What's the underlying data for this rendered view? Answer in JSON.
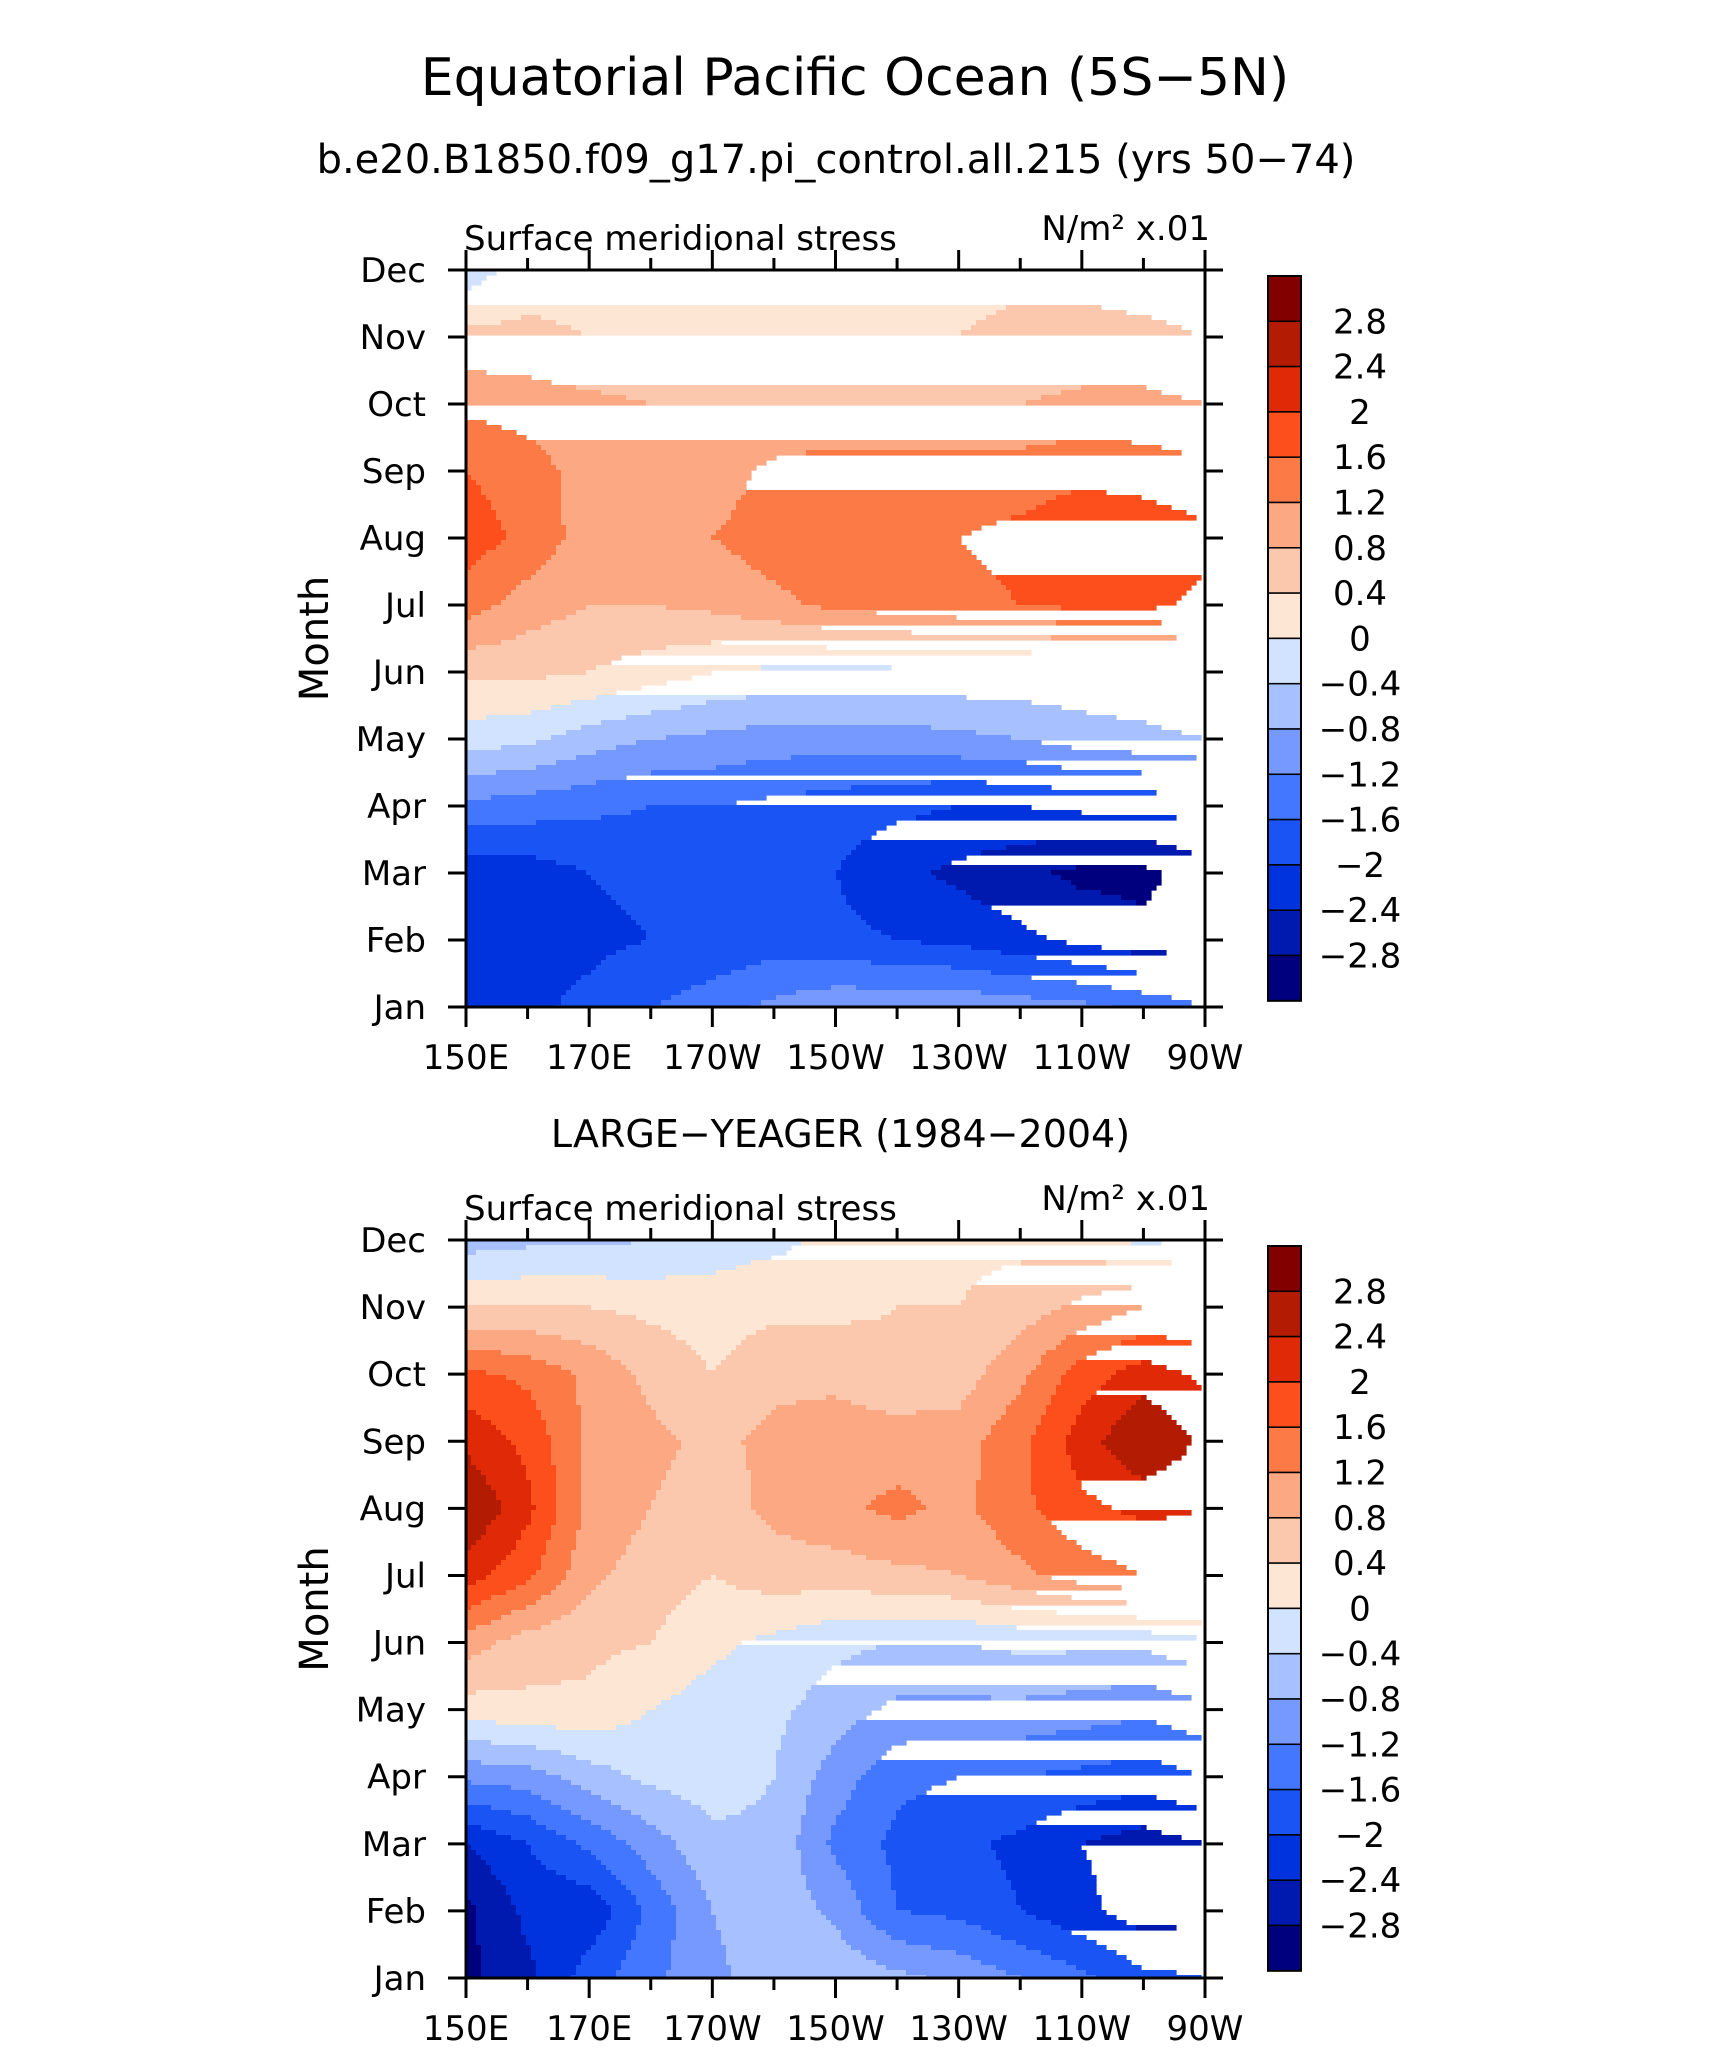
{
  "figure": {
    "title": "Equatorial Pacific Ocean (5S−5N)",
    "subtitle": "b.e20.B1850.f09_g17.pi_control.all.215 (yrs 50−74)"
  },
  "chart_data": [
    {
      "type": "heatmap",
      "title": "b.e20.B1850.f09_g17.pi_control.all.215 (yrs 50−74)",
      "left_label": "Surface meridional stress",
      "units_label": "N/m² x.01",
      "xlabel": "",
      "ylabel": "Month",
      "x_ticks": [
        "150E",
        "170E",
        "170W",
        "150W",
        "130W",
        "110W",
        "90W"
      ],
      "x_lon": [
        150,
        160,
        170,
        180,
        190,
        200,
        210,
        220,
        230,
        240,
        250,
        260,
        270
      ],
      "y_months": [
        "Jan",
        "Feb",
        "Mar",
        "Apr",
        "May",
        "Jun",
        "Jul",
        "Aug",
        "Sep",
        "Oct",
        "Nov",
        "Dec"
      ],
      "values": [
        [
          -2.1,
          -2.1,
          -1.9,
          -1.6,
          -1.4,
          -1.1,
          -0.9,
          -0.9,
          -0.9,
          -1.0,
          -1.1,
          -1.3,
          -1.6
        ],
        [
          -2.3,
          -2.1,
          -2.1,
          -2.0,
          -1.9,
          -1.8,
          -1.9,
          -2.0,
          -2.1,
          -2.3,
          -2.5,
          -2.7,
          -2.5
        ],
        [
          -2.3,
          -2.2,
          -2.0,
          -1.9,
          -1.9,
          -1.8,
          -2.0,
          -2.3,
          -2.5,
          -2.7,
          -2.9,
          -2.9,
          -2.6
        ],
        [
          -1.3,
          -1.4,
          -1.5,
          -1.6,
          -1.6,
          -1.7,
          -1.8,
          -1.9,
          -2.0,
          -2.0,
          -1.9,
          -1.9,
          -1.8
        ],
        [
          -0.2,
          -0.3,
          -0.6,
          -0.8,
          -0.9,
          -1.0,
          -1.0,
          -1.0,
          -0.9,
          -0.8,
          -0.6,
          -0.5,
          -0.4
        ],
        [
          0.5,
          0.5,
          0.4,
          0.2,
          0.0,
          -0.1,
          -0.1,
          -0.1,
          -0.1,
          -0.1,
          -0.1,
          -0.1,
          0.0
        ],
        [
          1.4,
          1.0,
          0.8,
          0.8,
          0.9,
          1.1,
          1.3,
          1.4,
          1.5,
          1.6,
          1.7,
          1.7,
          1.5
        ],
        [
          1.8,
          1.5,
          1.0,
          0.9,
          1.2,
          1.4,
          1.5,
          1.5,
          1.6,
          1.7,
          1.9,
          1.9,
          1.7
        ],
        [
          1.6,
          1.4,
          1.0,
          0.9,
          1.0,
          1.3,
          1.4,
          1.4,
          1.4,
          1.4,
          1.5,
          1.4,
          1.3
        ],
        [
          1.1,
          1.0,
          0.9,
          0.8,
          0.8,
          0.8,
          0.8,
          0.8,
          0.8,
          0.8,
          0.9,
          0.9,
          0.8
        ],
        [
          0.5,
          0.5,
          0.4,
          0.4,
          0.4,
          0.4,
          0.4,
          0.4,
          0.4,
          0.5,
          0.5,
          0.5,
          0.4
        ],
        [
          -0.2,
          0.2,
          0.2,
          0.2,
          0.3,
          0.3,
          0.3,
          0.3,
          0.3,
          0.3,
          0.3,
          0.2,
          0.1
        ]
      ],
      "levels": [
        -2.8,
        -2.4,
        -2.0,
        -1.6,
        -1.2,
        -0.8,
        -0.4,
        0,
        0.4,
        0.8,
        1.2,
        1.6,
        2.0,
        2.4,
        2.8
      ],
      "colorbar_labels": [
        "2.8",
        "2.4",
        "2",
        "1.6",
        "1.2",
        "0.8",
        "0.4",
        "0",
        "−0.4",
        "−0.8",
        "−1.2",
        "−1.6",
        "−2",
        "−2.4",
        "−2.8"
      ]
    },
    {
      "type": "heatmap",
      "title": "LARGE−YEAGER (1984−2004)",
      "left_label": "Surface meridional stress",
      "units_label": "N/m² x.01",
      "xlabel": "",
      "ylabel": "Month",
      "x_ticks": [
        "150E",
        "170E",
        "170W",
        "150W",
        "130W",
        "110W",
        "90W"
      ],
      "x_lon": [
        150,
        160,
        170,
        180,
        190,
        200,
        210,
        220,
        230,
        240,
        250,
        260,
        270
      ],
      "y_months": [
        "Jan",
        "Feb",
        "Mar",
        "Apr",
        "May",
        "Jun",
        "Jul",
        "Aug",
        "Sep",
        "Oct",
        "Nov",
        "Dec"
      ],
      "values": [
        [
          -2.9,
          -2.5,
          -1.8,
          -1.3,
          -0.9,
          -0.6,
          -0.5,
          -0.7,
          -0.9,
          -1.2,
          -1.5,
          -1.9,
          -2.0
        ],
        [
          -2.9,
          -2.3,
          -2.3,
          -1.5,
          -0.8,
          -0.5,
          -0.9,
          -1.6,
          -1.7,
          -2.0,
          -2.3,
          -2.6,
          -2.5
        ],
        [
          -2.4,
          -2.0,
          -1.5,
          -1.0,
          -0.5,
          -0.5,
          -1.3,
          -1.7,
          -1.9,
          -2.1,
          -2.4,
          -2.6,
          -2.4
        ],
        [
          -1.1,
          -1.0,
          -0.6,
          -0.3,
          -0.2,
          -0.4,
          -1.0,
          -1.5,
          -1.6,
          -1.6,
          -1.7,
          -1.8,
          -1.6
        ],
        [
          0.2,
          0.3,
          0.3,
          0.0,
          -0.2,
          -0.3,
          -0.6,
          -0.9,
          -0.9,
          -0.9,
          -1.0,
          -1.1,
          -0.9
        ],
        [
          1.0,
          0.6,
          0.5,
          0.4,
          0.1,
          -0.1,
          -0.3,
          -0.4,
          -0.4,
          -0.3,
          -0.3,
          -0.3,
          -0.1
        ],
        [
          2.2,
          1.7,
          0.9,
          0.6,
          0.4,
          0.6,
          0.6,
          0.7,
          0.8,
          1.1,
          1.4,
          1.6,
          1.6
        ],
        [
          2.8,
          2.1,
          1.1,
          0.8,
          0.6,
          0.9,
          1.1,
          1.3,
          1.1,
          1.5,
          1.9,
          2.1,
          2.0
        ],
        [
          2.3,
          1.9,
          1.1,
          0.9,
          0.7,
          0.9,
          1.0,
          1.0,
          1.0,
          1.5,
          2.2,
          2.8,
          2.3
        ],
        [
          1.7,
          1.5,
          1.1,
          0.7,
          0.4,
          0.7,
          0.7,
          0.5,
          0.6,
          1.1,
          1.8,
          2.2,
          1.9
        ],
        [
          0.4,
          0.4,
          0.4,
          0.3,
          0.2,
          0.3,
          0.3,
          0.4,
          0.4,
          0.6,
          0.9,
          1.2,
          1.2
        ],
        [
          -0.6,
          -0.5,
          -0.5,
          -0.4,
          -0.2,
          -0.1,
          0.1,
          0.2,
          0.3,
          0.3,
          0.2,
          -0.1,
          0.1
        ]
      ],
      "levels": [
        -2.8,
        -2.4,
        -2.0,
        -1.6,
        -1.2,
        -0.8,
        -0.4,
        0,
        0.4,
        0.8,
        1.2,
        1.6,
        2.0,
        2.4,
        2.8
      ],
      "colorbar_labels": [
        "2.8",
        "2.4",
        "2",
        "1.6",
        "1.2",
        "0.8",
        "0.4",
        "0",
        "−0.4",
        "−0.8",
        "−1.2",
        "−1.6",
        "−2",
        "−2.4",
        "−2.8"
      ]
    }
  ],
  "colors": {
    "palette": [
      "#00007e",
      "#001ab0",
      "#0033dd",
      "#1b54f5",
      "#4477ff",
      "#7599ff",
      "#a7c0ff",
      "#d2e3ff",
      "#fee6d5",
      "#fcc8ad",
      "#fca883",
      "#fb7a46",
      "#fc4f1c",
      "#e02a07",
      "#b31b03",
      "#820000"
    ]
  }
}
